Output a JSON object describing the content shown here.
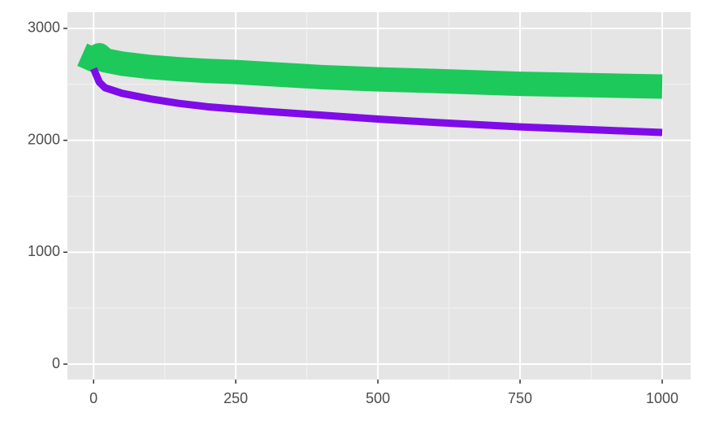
{
  "chart_data": {
    "type": "line",
    "x": [
      -20,
      0,
      10,
      20,
      50,
      100,
      150,
      200,
      250,
      300,
      400,
      500,
      600,
      750,
      900,
      1000
    ],
    "series": [
      {
        "color": "#1dc95a",
        "values": [
          2765,
          2720,
          2760,
          2715,
          2685,
          2655,
          2635,
          2620,
          2610,
          2595,
          2565,
          2545,
          2530,
          2505,
          2490,
          2480
        ]
      },
      {
        "color": "#7f0ce8",
        "values": [
          null,
          2640,
          2520,
          2470,
          2420,
          2370,
          2330,
          2300,
          2280,
          2260,
          2225,
          2190,
          2160,
          2120,
          2090,
          2070
        ]
      }
    ],
    "xlim": [
      -46,
      1050
    ],
    "ylim": [
      -138,
      3145
    ],
    "xticks": [
      0,
      250,
      500,
      750,
      1000
    ],
    "yticks": [
      0,
      1000,
      2000,
      3000
    ],
    "grid": true
  }
}
